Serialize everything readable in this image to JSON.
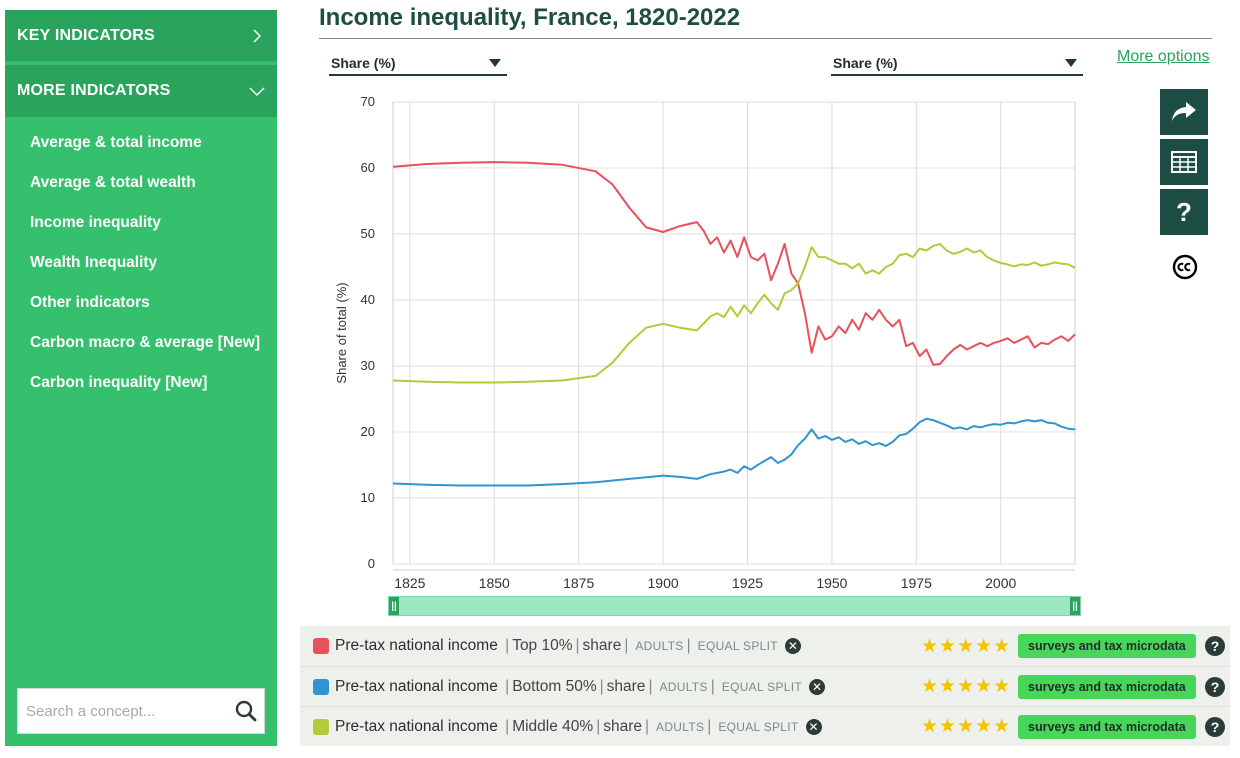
{
  "sidebar": {
    "key_indicators_label": "KEY INDICATORS",
    "more_indicators_label": "MORE INDICATORS",
    "items": [
      {
        "label": "Average & total income"
      },
      {
        "label": "Average & total wealth"
      },
      {
        "label": "Income inequality"
      },
      {
        "label": "Wealth Inequality"
      },
      {
        "label": "Other indicators"
      },
      {
        "label": "Carbon macro & average [New]"
      },
      {
        "label": "Carbon inequality [New]"
      }
    ],
    "search_placeholder": "Search a concept..."
  },
  "header": {
    "title": "Income inequality, France, 1820-2022",
    "left_selector": "Share (%)",
    "right_selector": "Share (%)",
    "more_options": "More options"
  },
  "tools": {
    "help_label": "?"
  },
  "colors": {
    "top10": "#e8505b",
    "bottom50": "#2f95d0",
    "middle40": "#b5c93a",
    "accent": "#34c06d",
    "dark": "#1e4d44"
  },
  "chart_data": {
    "type": "line",
    "title": "Income inequality, France, 1820-2022",
    "ylabel": "Share of total (%)",
    "xlabel": "",
    "xlim": [
      1820,
      2022
    ],
    "ylim": [
      0,
      70
    ],
    "x_ticks": [
      1825,
      1850,
      1875,
      1900,
      1925,
      1950,
      1975,
      2000
    ],
    "y_ticks": [
      0,
      10,
      20,
      30,
      40,
      50,
      60,
      70
    ],
    "grid": true,
    "series": [
      {
        "name": "Top 10%",
        "color": "#e8505b",
        "points": [
          [
            1820,
            60.2
          ],
          [
            1830,
            60.6
          ],
          [
            1840,
            60.8
          ],
          [
            1850,
            60.9
          ],
          [
            1860,
            60.8
          ],
          [
            1870,
            60.5
          ],
          [
            1880,
            59.5
          ],
          [
            1885,
            57.5
          ],
          [
            1890,
            54
          ],
          [
            1895,
            51
          ],
          [
            1900,
            50.3
          ],
          [
            1905,
            51.2
          ],
          [
            1910,
            51.8
          ],
          [
            1912,
            50.5
          ],
          [
            1914,
            48.5
          ],
          [
            1916,
            49.5
          ],
          [
            1918,
            47.2
          ],
          [
            1920,
            49
          ],
          [
            1922,
            46.5
          ],
          [
            1924,
            49.5
          ],
          [
            1926,
            46.5
          ],
          [
            1928,
            46
          ],
          [
            1930,
            47
          ],
          [
            1932,
            43
          ],
          [
            1934,
            45.5
          ],
          [
            1936,
            48.5
          ],
          [
            1938,
            44
          ],
          [
            1940,
            42.5
          ],
          [
            1942,
            38
          ],
          [
            1944,
            32
          ],
          [
            1946,
            36
          ],
          [
            1948,
            34
          ],
          [
            1950,
            34.5
          ],
          [
            1952,
            36
          ],
          [
            1954,
            35
          ],
          [
            1956,
            37
          ],
          [
            1958,
            35.5
          ],
          [
            1960,
            38
          ],
          [
            1962,
            37
          ],
          [
            1964,
            38.5
          ],
          [
            1966,
            37
          ],
          [
            1968,
            36
          ],
          [
            1970,
            37
          ],
          [
            1972,
            33
          ],
          [
            1974,
            33.5
          ],
          [
            1976,
            31.5
          ],
          [
            1978,
            32.5
          ],
          [
            1980,
            30.2
          ],
          [
            1982,
            30.3
          ],
          [
            1984,
            31.5
          ],
          [
            1986,
            32.5
          ],
          [
            1988,
            33.2
          ],
          [
            1990,
            32.5
          ],
          [
            1992,
            33
          ],
          [
            1994,
            33.5
          ],
          [
            1996,
            33
          ],
          [
            1998,
            33.5
          ],
          [
            2000,
            33.8
          ],
          [
            2002,
            34.2
          ],
          [
            2004,
            33.5
          ],
          [
            2006,
            34
          ],
          [
            2008,
            34.5
          ],
          [
            2010,
            32.8
          ],
          [
            2012,
            33.5
          ],
          [
            2014,
            33.3
          ],
          [
            2016,
            34
          ],
          [
            2018,
            34.5
          ],
          [
            2020,
            33.8
          ],
          [
            2022,
            34.8
          ]
        ]
      },
      {
        "name": "Bottom 50%",
        "color": "#2f95d0",
        "points": [
          [
            1820,
            12.2
          ],
          [
            1830,
            12
          ],
          [
            1840,
            11.9
          ],
          [
            1850,
            11.9
          ],
          [
            1860,
            11.9
          ],
          [
            1870,
            12.1
          ],
          [
            1880,
            12.4
          ],
          [
            1890,
            12.9
          ],
          [
            1900,
            13.4
          ],
          [
            1905,
            13.2
          ],
          [
            1910,
            12.9
          ],
          [
            1914,
            13.6
          ],
          [
            1918,
            14
          ],
          [
            1920,
            14.3
          ],
          [
            1922,
            13.8
          ],
          [
            1924,
            14.8
          ],
          [
            1926,
            14.3
          ],
          [
            1928,
            15
          ],
          [
            1930,
            15.6
          ],
          [
            1932,
            16.2
          ],
          [
            1934,
            15.3
          ],
          [
            1936,
            15.8
          ],
          [
            1938,
            16.6
          ],
          [
            1940,
            18
          ],
          [
            1942,
            19
          ],
          [
            1944,
            20.4
          ],
          [
            1946,
            19
          ],
          [
            1948,
            19.4
          ],
          [
            1950,
            18.8
          ],
          [
            1952,
            19.2
          ],
          [
            1954,
            18.5
          ],
          [
            1956,
            18.9
          ],
          [
            1958,
            18.2
          ],
          [
            1960,
            18.6
          ],
          [
            1962,
            18
          ],
          [
            1964,
            18.3
          ],
          [
            1966,
            17.9
          ],
          [
            1968,
            18.5
          ],
          [
            1970,
            19.5
          ],
          [
            1972,
            19.7
          ],
          [
            1974,
            20.5
          ],
          [
            1976,
            21.5
          ],
          [
            1978,
            22
          ],
          [
            1980,
            21.8
          ],
          [
            1982,
            21.4
          ],
          [
            1984,
            21
          ],
          [
            1986,
            20.5
          ],
          [
            1988,
            20.7
          ],
          [
            1990,
            20.4
          ],
          [
            1992,
            20.9
          ],
          [
            1994,
            20.7
          ],
          [
            1996,
            21
          ],
          [
            1998,
            21.2
          ],
          [
            2000,
            21.1
          ],
          [
            2002,
            21.4
          ],
          [
            2004,
            21.3
          ],
          [
            2006,
            21.6
          ],
          [
            2008,
            21.8
          ],
          [
            2010,
            21.6
          ],
          [
            2012,
            21.8
          ],
          [
            2014,
            21.4
          ],
          [
            2016,
            21.3
          ],
          [
            2018,
            20.8
          ],
          [
            2020,
            20.5
          ],
          [
            2022,
            20.4
          ]
        ]
      },
      {
        "name": "Middle 40%",
        "color": "#b5c93a",
        "points": [
          [
            1820,
            27.8
          ],
          [
            1830,
            27.6
          ],
          [
            1840,
            27.5
          ],
          [
            1850,
            27.5
          ],
          [
            1860,
            27.6
          ],
          [
            1870,
            27.8
          ],
          [
            1880,
            28.5
          ],
          [
            1885,
            30.5
          ],
          [
            1890,
            33.5
          ],
          [
            1895,
            35.8
          ],
          [
            1900,
            36.4
          ],
          [
            1905,
            35.8
          ],
          [
            1910,
            35.4
          ],
          [
            1914,
            37.5
          ],
          [
            1916,
            38
          ],
          [
            1918,
            37.4
          ],
          [
            1920,
            39
          ],
          [
            1922,
            37.5
          ],
          [
            1924,
            39.2
          ],
          [
            1926,
            38
          ],
          [
            1928,
            39.5
          ],
          [
            1930,
            40.8
          ],
          [
            1932,
            39.5
          ],
          [
            1934,
            38.5
          ],
          [
            1936,
            41
          ],
          [
            1938,
            41.5
          ],
          [
            1940,
            42.5
          ],
          [
            1942,
            45
          ],
          [
            1944,
            48
          ],
          [
            1946,
            46.5
          ],
          [
            1948,
            46.5
          ],
          [
            1950,
            46
          ],
          [
            1952,
            45.5
          ],
          [
            1954,
            45.5
          ],
          [
            1956,
            44.8
          ],
          [
            1958,
            45.5
          ],
          [
            1960,
            44
          ],
          [
            1962,
            44.5
          ],
          [
            1964,
            44
          ],
          [
            1966,
            45
          ],
          [
            1968,
            45.5
          ],
          [
            1970,
            46.8
          ],
          [
            1972,
            47
          ],
          [
            1974,
            46.5
          ],
          [
            1976,
            47.8
          ],
          [
            1978,
            47.5
          ],
          [
            1980,
            48.2
          ],
          [
            1982,
            48.5
          ],
          [
            1984,
            47.5
          ],
          [
            1986,
            47
          ],
          [
            1988,
            47.3
          ],
          [
            1990,
            47.8
          ],
          [
            1992,
            47.2
          ],
          [
            1994,
            47.5
          ],
          [
            1996,
            46.5
          ],
          [
            1998,
            46
          ],
          [
            2000,
            45.6
          ],
          [
            2002,
            45.4
          ],
          [
            2004,
            45.1
          ],
          [
            2006,
            45.4
          ],
          [
            2008,
            45.3
          ],
          [
            2010,
            45.7
          ],
          [
            2012,
            45.2
          ],
          [
            2014,
            45.4
          ],
          [
            2016,
            45.7
          ],
          [
            2018,
            45.5
          ],
          [
            2020,
            45.4
          ],
          [
            2022,
            44.9
          ]
        ]
      }
    ]
  },
  "legend": {
    "rows": [
      {
        "indicator": "Pre-tax national income",
        "group": "Top 10%",
        "measure": "share",
        "pop": "ADULTS",
        "split": "EQUAL SPLIT",
        "stars": "★★★★★",
        "source": "surveys and tax microdata"
      },
      {
        "indicator": "Pre-tax national income",
        "group": "Bottom 50%",
        "measure": "share",
        "pop": "ADULTS",
        "split": "EQUAL SPLIT",
        "stars": "★★★★★",
        "source": "surveys and tax microdata"
      },
      {
        "indicator": "Pre-tax national income",
        "group": "Middle 40%",
        "measure": "share",
        "pop": "ADULTS",
        "split": "EQUAL SPLIT",
        "stars": "★★★★★",
        "source": "surveys and tax microdata"
      }
    ]
  }
}
